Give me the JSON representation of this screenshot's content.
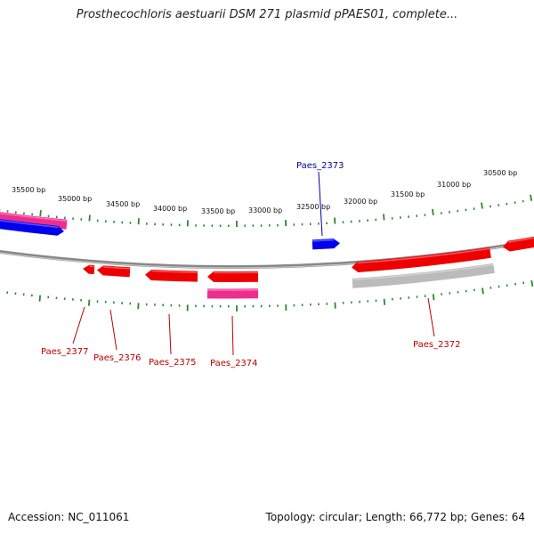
{
  "title": "Prosthecochloris aestuarii DSM 271 plasmid pPAES01, complete...",
  "footer": {
    "accession": "Accession: NC_011061",
    "summary": "Topology: circular; Length: 66,772 bp; Genes: 64"
  },
  "colors": {
    "backbone": "#888888",
    "forward_gene": "#0000ee",
    "reverse_gene": "#ee0000",
    "rna_gene": "#ee2d8f",
    "other_feature": "#bbbbbb",
    "tick": "#2a8a2a",
    "label_forward": "#000099",
    "label_reverse": "#bb0000"
  },
  "scale_labels": [
    "35500 bp",
    "35000 bp",
    "34500 bp",
    "34000 bp",
    "33500 bp",
    "33000 bp",
    "32500 bp",
    "32000 bp",
    "31500 bp",
    "31000 bp",
    "30500 bp"
  ],
  "gene_labels": [
    {
      "name": "Paes_2373",
      "strand": "forward"
    },
    {
      "name": "Paes_2377",
      "strand": "reverse"
    },
    {
      "name": "Paes_2376",
      "strand": "reverse"
    },
    {
      "name": "Paes_2375",
      "strand": "reverse"
    },
    {
      "name": "Paes_2374",
      "strand": "reverse"
    },
    {
      "name": "Paes_2372",
      "strand": "reverse"
    }
  ]
}
